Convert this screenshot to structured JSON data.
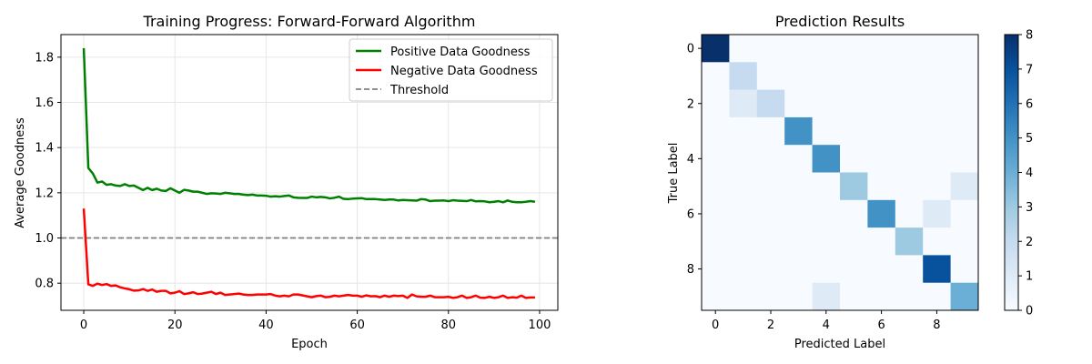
{
  "chart_data": [
    {
      "type": "line",
      "title": "Training Progress: Forward-Forward Algorithm",
      "xlabel": "Epoch",
      "ylabel": "Average Goodness",
      "xlim": [
        -5,
        104
      ],
      "ylim": [
        0.68,
        1.9
      ],
      "xticks": [
        0,
        20,
        40,
        60,
        80,
        100
      ],
      "yticks": [
        0.8,
        1.0,
        1.2,
        1.4,
        1.6,
        1.8
      ],
      "grid": true,
      "legend": "top-right",
      "series": [
        {
          "name": "Positive Data Goodness",
          "color": "#008000",
          "x": [
            0,
            1,
            2,
            3,
            4,
            5,
            6,
            7,
            8,
            9,
            10,
            11,
            12,
            13,
            14,
            15,
            16,
            17,
            18,
            19,
            20,
            21,
            22,
            23,
            24,
            25,
            26,
            27,
            28,
            29,
            30,
            31,
            32,
            33,
            34,
            35,
            36,
            37,
            38,
            39,
            40,
            41,
            42,
            43,
            44,
            45,
            46,
            47,
            48,
            49,
            50,
            51,
            52,
            53,
            54,
            55,
            56,
            57,
            58,
            59,
            60,
            61,
            62,
            63,
            64,
            65,
            66,
            67,
            68,
            69,
            70,
            71,
            72,
            73,
            74,
            75,
            76,
            77,
            78,
            79,
            80,
            81,
            82,
            83,
            84,
            85,
            86,
            87,
            88,
            89,
            90,
            91,
            92,
            93,
            94,
            95,
            96,
            97,
            98,
            99
          ],
          "y": [
            1.84,
            1.31,
            1.285,
            1.245,
            1.25,
            1.235,
            1.238,
            1.232,
            1.23,
            1.238,
            1.23,
            1.232,
            1.222,
            1.212,
            1.222,
            1.212,
            1.218,
            1.21,
            1.208,
            1.22,
            1.21,
            1.2,
            1.213,
            1.21,
            1.205,
            1.205,
            1.2,
            1.195,
            1.198,
            1.197,
            1.195,
            1.2,
            1.198,
            1.195,
            1.195,
            1.192,
            1.19,
            1.192,
            1.188,
            1.188,
            1.187,
            1.183,
            1.185,
            1.183,
            1.186,
            1.188,
            1.18,
            1.178,
            1.177,
            1.177,
            1.183,
            1.18,
            1.182,
            1.18,
            1.175,
            1.178,
            1.183,
            1.173,
            1.172,
            1.174,
            1.175,
            1.176,
            1.172,
            1.172,
            1.172,
            1.17,
            1.168,
            1.17,
            1.17,
            1.166,
            1.168,
            1.167,
            1.166,
            1.165,
            1.172,
            1.17,
            1.163,
            1.165,
            1.165,
            1.166,
            1.163,
            1.167,
            1.165,
            1.164,
            1.163,
            1.168,
            1.162,
            1.163,
            1.162,
            1.158,
            1.16,
            1.163,
            1.158,
            1.166,
            1.16,
            1.158,
            1.158,
            1.16,
            1.163,
            1.16
          ]
        },
        {
          "name": "Negative Data Goodness",
          "color": "#ff0000",
          "x": [
            0,
            1,
            2,
            3,
            4,
            5,
            6,
            7,
            8,
            9,
            10,
            11,
            12,
            13,
            14,
            15,
            16,
            17,
            18,
            19,
            20,
            21,
            22,
            23,
            24,
            25,
            26,
            27,
            28,
            29,
            30,
            31,
            32,
            33,
            34,
            35,
            36,
            37,
            38,
            39,
            40,
            41,
            42,
            43,
            44,
            45,
            46,
            47,
            48,
            49,
            50,
            51,
            52,
            53,
            54,
            55,
            56,
            57,
            58,
            59,
            60,
            61,
            62,
            63,
            64,
            65,
            66,
            67,
            68,
            69,
            70,
            71,
            72,
            73,
            74,
            75,
            76,
            77,
            78,
            79,
            80,
            81,
            82,
            83,
            84,
            85,
            86,
            87,
            88,
            89,
            90,
            91,
            92,
            93,
            94,
            95,
            96,
            97,
            98,
            99
          ],
          "y": [
            1.13,
            0.795,
            0.788,
            0.798,
            0.792,
            0.796,
            0.788,
            0.79,
            0.782,
            0.777,
            0.773,
            0.767,
            0.768,
            0.774,
            0.766,
            0.772,
            0.762,
            0.766,
            0.766,
            0.755,
            0.758,
            0.765,
            0.752,
            0.755,
            0.76,
            0.752,
            0.754,
            0.758,
            0.762,
            0.752,
            0.758,
            0.748,
            0.75,
            0.752,
            0.754,
            0.75,
            0.748,
            0.748,
            0.75,
            0.75,
            0.75,
            0.752,
            0.745,
            0.742,
            0.745,
            0.742,
            0.75,
            0.75,
            0.746,
            0.742,
            0.738,
            0.743,
            0.745,
            0.738,
            0.74,
            0.745,
            0.742,
            0.745,
            0.748,
            0.745,
            0.745,
            0.74,
            0.746,
            0.742,
            0.743,
            0.738,
            0.745,
            0.74,
            0.745,
            0.743,
            0.745,
            0.735,
            0.75,
            0.742,
            0.74,
            0.74,
            0.745,
            0.738,
            0.738,
            0.738,
            0.74,
            0.735,
            0.738,
            0.745,
            0.735,
            0.738,
            0.745,
            0.736,
            0.735,
            0.74,
            0.735,
            0.738,
            0.745,
            0.735,
            0.738,
            0.736,
            0.745,
            0.735,
            0.737,
            0.737
          ]
        },
        {
          "name": "Threshold",
          "color": "#808080",
          "dashed": true,
          "hline": 1.0
        }
      ]
    },
    {
      "type": "heatmap",
      "title": "Prediction Results",
      "xlabel": "Predicted Label",
      "ylabel": "True Label",
      "xticks": [
        0,
        2,
        4,
        6,
        8
      ],
      "yticks": [
        0,
        2,
        4,
        6,
        8
      ],
      "colormap": "Blues",
      "vmin": 0,
      "vmax": 8,
      "colorbar_ticks": [
        0,
        1,
        2,
        3,
        4,
        5,
        6,
        7,
        8
      ],
      "matrix": [
        [
          8,
          0,
          0,
          0,
          0,
          0,
          0,
          0,
          0,
          0
        ],
        [
          0,
          2,
          0,
          0,
          0,
          0,
          0,
          0,
          0,
          0
        ],
        [
          0,
          1,
          2,
          0,
          0,
          0,
          0,
          0,
          0,
          0
        ],
        [
          0,
          0,
          0,
          5,
          0,
          0,
          0,
          0,
          0,
          0
        ],
        [
          0,
          0,
          0,
          0,
          5,
          0,
          0,
          0,
          0,
          0
        ],
        [
          0,
          0,
          0,
          0,
          0,
          3,
          0,
          0,
          0,
          1
        ],
        [
          0,
          0,
          0,
          0,
          0,
          0,
          5,
          0,
          1,
          0
        ],
        [
          0,
          0,
          0,
          0,
          0,
          0,
          0,
          3,
          0,
          0
        ],
        [
          0,
          0,
          0,
          0,
          0,
          0,
          0,
          0,
          7,
          0
        ],
        [
          0,
          0,
          0,
          0,
          1,
          0,
          0,
          0,
          0,
          4
        ]
      ]
    }
  ]
}
